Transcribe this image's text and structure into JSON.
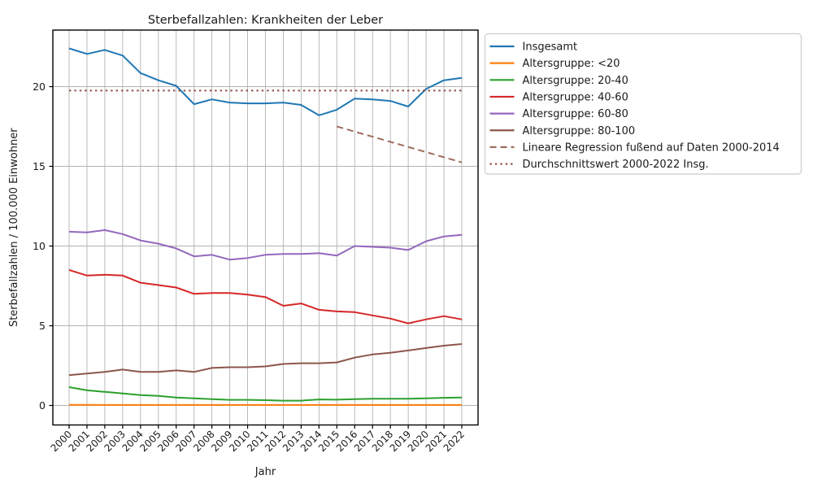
{
  "figure": {
    "title": "Sterbefallzahlen: Krankheiten der Leber",
    "xlabel": "Jahr",
    "ylabel": "Sterbefallzahlen / 100.000 Einwohner"
  },
  "chart_data": {
    "type": "line",
    "title": "Sterbefallzahlen: Krankheiten der Leber",
    "xlabel": "Jahr",
    "ylabel": "Sterbefallzahlen / 100.000 Einwohner",
    "x": [
      2000,
      2001,
      2002,
      2003,
      2004,
      2005,
      2006,
      2007,
      2008,
      2009,
      2010,
      2011,
      2012,
      2013,
      2014,
      2015,
      2016,
      2017,
      2018,
      2019,
      2020,
      2021,
      2022
    ],
    "xtick_labels": [
      "2000",
      "2001",
      "2002",
      "2003",
      "2004",
      "2005",
      "2006",
      "2007",
      "2008",
      "2009",
      "2010",
      "2011",
      "2012",
      "2013",
      "2014",
      "2015",
      "2016",
      "2017",
      "2018",
      "2019",
      "2020",
      "2021",
      "2022"
    ],
    "yticks": [
      0,
      5,
      10,
      15,
      20
    ],
    "ylim": [
      -1.2,
      23.6
    ],
    "grid": true,
    "legend_position": "outside-top-right",
    "series": [
      {
        "name": "Insgesamt",
        "color": "#1f77b4",
        "style": "solid",
        "values": [
          22.4,
          22.05,
          22.3,
          21.95,
          20.85,
          20.4,
          20.05,
          18.9,
          19.2,
          19.0,
          18.95,
          18.95,
          19.0,
          18.85,
          18.2,
          18.55,
          19.25,
          19.2,
          19.1,
          18.75,
          19.85,
          20.4,
          20.55
        ]
      },
      {
        "name": "Altersgruppe: <20",
        "color": "#ff7f0e",
        "style": "solid",
        "values": [
          0.04,
          0.04,
          0.03,
          0.03,
          0.03,
          0.03,
          0.03,
          0.03,
          0.03,
          0.03,
          0.03,
          0.03,
          0.03,
          0.03,
          0.03,
          0.03,
          0.03,
          0.03,
          0.03,
          0.03,
          0.03,
          0.03,
          0.03
        ]
      },
      {
        "name": "Altersgruppe: 20-40",
        "color": "#2ca02c",
        "style": "solid",
        "values": [
          1.15,
          0.95,
          0.85,
          0.75,
          0.65,
          0.6,
          0.5,
          0.45,
          0.4,
          0.35,
          0.35,
          0.33,
          0.3,
          0.3,
          0.38,
          0.36,
          0.4,
          0.42,
          0.42,
          0.42,
          0.45,
          0.48,
          0.5
        ]
      },
      {
        "name": "Altersgruppe: 40-60",
        "color": "#d62728",
        "style": "solid",
        "values": [
          8.5,
          8.15,
          8.2,
          8.15,
          7.7,
          7.55,
          7.4,
          7.0,
          7.05,
          7.05,
          6.95,
          6.8,
          6.25,
          6.4,
          6.0,
          5.9,
          5.85,
          5.65,
          5.45,
          5.15,
          5.4,
          5.6,
          5.4
        ]
      },
      {
        "name": "Altersgruppe: 60-80",
        "color": "#9467bd",
        "style": "solid",
        "values": [
          10.9,
          10.85,
          11.0,
          10.75,
          10.35,
          10.15,
          9.85,
          9.35,
          9.45,
          9.15,
          9.25,
          9.45,
          9.5,
          9.5,
          9.55,
          9.4,
          10.0,
          9.95,
          9.9,
          9.75,
          10.3,
          10.6,
          10.7
        ]
      },
      {
        "name": "Altersgruppe: 80-100",
        "color": "#8c564b",
        "style": "solid",
        "values": [
          1.9,
          2.0,
          2.1,
          2.25,
          2.1,
          2.1,
          2.2,
          2.1,
          2.35,
          2.4,
          2.4,
          2.45,
          2.6,
          2.65,
          2.65,
          2.7,
          3.0,
          3.2,
          3.3,
          3.45,
          3.6,
          3.75,
          3.85
        ]
      },
      {
        "name": "Lineare Regression fußend auf Daten 2000-2014",
        "color": "#9e6d5e",
        "style": "dashed",
        "x": [
          2015,
          2022
        ],
        "values": [
          17.5,
          15.25
        ]
      },
      {
        "name": "Durchschnittswert 2000-2022 Insg.",
        "color": "#8b4d44",
        "style": "dotted",
        "x": [
          2000,
          2022
        ],
        "values": [
          19.75,
          19.75
        ]
      }
    ]
  },
  "style": {
    "grid_color": "#b3b3b3",
    "spine_color": "#000000",
    "text_color": "#1a1a1a",
    "legend_border_color": "#cccccc",
    "background": "#ffffff"
  }
}
